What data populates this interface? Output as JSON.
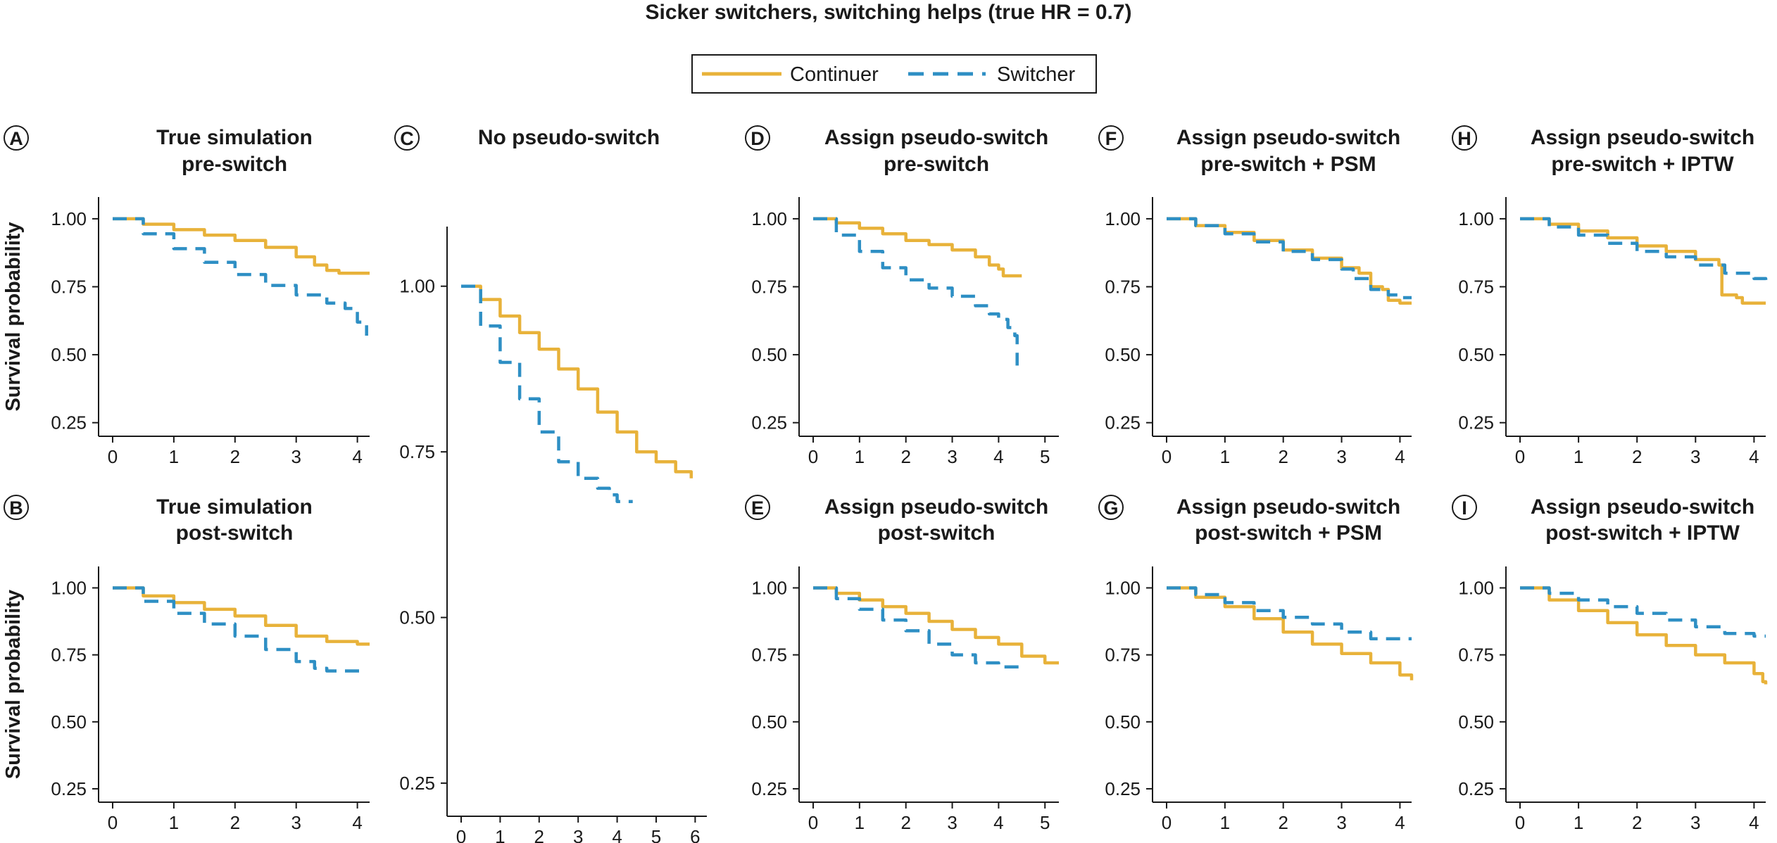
{
  "figure": {
    "title": "Sicker switchers, switching helps (true HR = 0.7)",
    "legend": {
      "placement": "top-center",
      "items": [
        {
          "label": "Continuer",
          "color": "#e8b23a",
          "dash": "solid"
        },
        {
          "label": "Switcher",
          "color": "#2e8fc4",
          "dash": "dashed"
        }
      ]
    },
    "ylabel": "Survival probability"
  },
  "chart_data": [
    {
      "id": "A",
      "type": "line",
      "title_lines": [
        "True simulation",
        "pre-switch"
      ],
      "ylabel": "Survival probability",
      "xlim": [
        0,
        4.2
      ],
      "ylim": [
        0.2,
        1.08
      ],
      "xticks": [
        0,
        1,
        2,
        3,
        4
      ],
      "yticks": [
        "1.00",
        "0.75",
        "0.50",
        "0.25"
      ],
      "series": [
        {
          "name": "Continuer",
          "x": [
            0,
            0.5,
            1,
            1.5,
            2,
            2.5,
            3,
            3.3,
            3.5,
            3.7,
            4.2
          ],
          "y": [
            1.0,
            0.98,
            0.96,
            0.94,
            0.92,
            0.895,
            0.86,
            0.83,
            0.81,
            0.8,
            0.8
          ]
        },
        {
          "name": "Switcher",
          "x": [
            0,
            0.5,
            1,
            1.5,
            2,
            2.5,
            3,
            3.5,
            3.8,
            4.0,
            4.15
          ],
          "y": [
            1.0,
            0.945,
            0.89,
            0.84,
            0.795,
            0.755,
            0.72,
            0.69,
            0.67,
            0.62,
            0.57
          ]
        }
      ]
    },
    {
      "id": "B",
      "type": "line",
      "title_lines": [
        "True simulation",
        "post-switch"
      ],
      "ylabel": "Survival probability",
      "xlim": [
        0,
        4.2
      ],
      "ylim": [
        0.2,
        1.08
      ],
      "xticks": [
        0,
        1,
        2,
        3,
        4
      ],
      "yticks": [
        "1.00",
        "0.75",
        "0.50",
        "0.25"
      ],
      "series": [
        {
          "name": "Continuer",
          "x": [
            0,
            0.5,
            1,
            1.5,
            2,
            2.5,
            3,
            3.5,
            4,
            4.2
          ],
          "y": [
            1.0,
            0.97,
            0.945,
            0.92,
            0.895,
            0.86,
            0.82,
            0.8,
            0.79,
            0.79
          ]
        },
        {
          "name": "Switcher",
          "x": [
            0,
            0.5,
            1,
            1.5,
            2,
            2.5,
            3,
            3.3,
            3.5,
            4.1
          ],
          "y": [
            1.0,
            0.95,
            0.905,
            0.865,
            0.82,
            0.77,
            0.725,
            0.7,
            0.69,
            0.675
          ]
        }
      ]
    },
    {
      "id": "C",
      "type": "line",
      "title_lines": [
        "No pseudo-switch"
      ],
      "xlim": [
        0,
        6.3
      ],
      "ylim": [
        0.2,
        1.09
      ],
      "xticks": [
        0,
        1,
        2,
        3,
        4,
        5,
        6
      ],
      "yticks": [
        "1.00",
        "0.75",
        "0.50",
        "0.25"
      ],
      "series": [
        {
          "name": "Continuer",
          "x": [
            0,
            0.5,
            1,
            1.5,
            2,
            2.5,
            3,
            3.5,
            4,
            4.5,
            5,
            5.5,
            5.9
          ],
          "y": [
            1.0,
            0.98,
            0.955,
            0.93,
            0.905,
            0.875,
            0.845,
            0.81,
            0.78,
            0.75,
            0.735,
            0.72,
            0.71
          ]
        },
        {
          "name": "Switcher",
          "x": [
            0,
            0.5,
            1,
            1.5,
            2,
            2.5,
            3,
            3.5,
            3.8,
            4.0,
            4.4
          ],
          "y": [
            1.0,
            0.94,
            0.885,
            0.83,
            0.78,
            0.735,
            0.71,
            0.695,
            0.685,
            0.675,
            0.675
          ]
        }
      ]
    },
    {
      "id": "D",
      "type": "line",
      "title_lines": [
        "Assign pseudo-switch",
        "pre-switch"
      ],
      "xlim": [
        0,
        5.3
      ],
      "ylim": [
        0.2,
        1.08
      ],
      "xticks": [
        0,
        1,
        2,
        3,
        4,
        5
      ],
      "yticks": [
        "1.00",
        "0.75",
        "0.50",
        "0.25"
      ],
      "series": [
        {
          "name": "Continuer",
          "x": [
            0,
            0.5,
            1,
            1.5,
            2,
            2.5,
            3,
            3.5,
            3.8,
            4.0,
            4.1,
            4.5
          ],
          "y": [
            1.0,
            0.985,
            0.965,
            0.945,
            0.92,
            0.905,
            0.885,
            0.86,
            0.83,
            0.815,
            0.79,
            0.79
          ]
        },
        {
          "name": "Switcher",
          "x": [
            0,
            0.5,
            1,
            1.5,
            2,
            2.5,
            3,
            3.5,
            3.8,
            4.0,
            4.2,
            4.35,
            4.4
          ],
          "y": [
            1.0,
            0.94,
            0.88,
            0.82,
            0.775,
            0.745,
            0.715,
            0.68,
            0.65,
            0.63,
            0.6,
            0.57,
            0.46
          ]
        }
      ]
    },
    {
      "id": "E",
      "type": "line",
      "title_lines": [
        "Assign pseudo-switch",
        "post-switch"
      ],
      "xlim": [
        0,
        5.3
      ],
      "ylim": [
        0.2,
        1.08
      ],
      "xticks": [
        0,
        1,
        2,
        3,
        4,
        5
      ],
      "yticks": [
        "1.00",
        "0.75",
        "0.50",
        "0.25"
      ],
      "series": [
        {
          "name": "Continuer",
          "x": [
            0,
            0.5,
            1,
            1.5,
            2,
            2.5,
            3,
            3.5,
            4,
            4.5,
            5,
            5.3
          ],
          "y": [
            1.0,
            0.98,
            0.955,
            0.93,
            0.905,
            0.875,
            0.845,
            0.815,
            0.79,
            0.745,
            0.72,
            0.72
          ]
        },
        {
          "name": "Switcher",
          "x": [
            0,
            0.5,
            1,
            1.5,
            2,
            2.5,
            3,
            3.5,
            4,
            4.5
          ],
          "y": [
            1.0,
            0.96,
            0.92,
            0.88,
            0.84,
            0.79,
            0.75,
            0.72,
            0.705,
            0.705
          ]
        }
      ]
    },
    {
      "id": "F",
      "type": "line",
      "title_lines": [
        "Assign pseudo-switch",
        "pre-switch + PSM"
      ],
      "xlim": [
        0,
        4.2
      ],
      "ylim": [
        0.2,
        1.08
      ],
      "xticks": [
        0,
        1,
        2,
        3,
        4
      ],
      "yticks": [
        "1.00",
        "0.75",
        "0.50",
        "0.25"
      ],
      "series": [
        {
          "name": "Continuer",
          "x": [
            0,
            0.5,
            1,
            1.5,
            2,
            2.5,
            3,
            3.3,
            3.5,
            3.7,
            3.8,
            4.0,
            4.2
          ],
          "y": [
            1.0,
            0.975,
            0.95,
            0.92,
            0.885,
            0.855,
            0.82,
            0.8,
            0.75,
            0.74,
            0.7,
            0.69,
            0.69
          ]
        },
        {
          "name": "Switcher",
          "x": [
            0,
            0.5,
            1,
            1.5,
            2,
            2.5,
            3,
            3.2,
            3.5,
            3.8,
            4.0,
            4.2
          ],
          "y": [
            1.0,
            0.975,
            0.945,
            0.915,
            0.88,
            0.85,
            0.815,
            0.78,
            0.74,
            0.72,
            0.71,
            0.71
          ]
        }
      ]
    },
    {
      "id": "G",
      "type": "line",
      "title_lines": [
        "Assign pseudo-switch",
        "post-switch + PSM"
      ],
      "xlim": [
        0,
        4.2
      ],
      "ylim": [
        0.2,
        1.08
      ],
      "xticks": [
        0,
        1,
        2,
        3,
        4
      ],
      "yticks": [
        "1.00",
        "0.75",
        "0.50",
        "0.25"
      ],
      "series": [
        {
          "name": "Continuer",
          "x": [
            0,
            0.5,
            1,
            1.5,
            2,
            2.5,
            3,
            3.5,
            4,
            4.2
          ],
          "y": [
            1.0,
            0.965,
            0.93,
            0.885,
            0.835,
            0.79,
            0.755,
            0.72,
            0.675,
            0.655
          ]
        },
        {
          "name": "Switcher",
          "x": [
            0,
            0.5,
            1,
            1.5,
            2,
            2.5,
            3,
            3.5,
            4,
            4.2
          ],
          "y": [
            1.0,
            0.975,
            0.945,
            0.915,
            0.89,
            0.865,
            0.835,
            0.81,
            0.81,
            0.81
          ]
        }
      ]
    },
    {
      "id": "H",
      "type": "line",
      "title_lines": [
        "Assign pseudo-switch",
        "pre-switch + IPTW"
      ],
      "xlim": [
        0,
        4.2
      ],
      "ylim": [
        0.2,
        1.08
      ],
      "xticks": [
        0,
        1,
        2,
        3,
        4
      ],
      "yticks": [
        "1.00",
        "0.75",
        "0.50",
        "0.25"
      ],
      "series": [
        {
          "name": "Continuer",
          "x": [
            0,
            0.5,
            1,
            1.5,
            2,
            2.5,
            3,
            3.4,
            3.45,
            3.7,
            3.8,
            4.2
          ],
          "y": [
            1.0,
            0.98,
            0.955,
            0.93,
            0.9,
            0.88,
            0.85,
            0.83,
            0.72,
            0.71,
            0.69,
            0.69
          ]
        },
        {
          "name": "Switcher",
          "x": [
            0,
            0.5,
            1,
            1.5,
            2,
            2.5,
            3,
            3.5,
            4,
            4.2
          ],
          "y": [
            1.0,
            0.97,
            0.94,
            0.91,
            0.88,
            0.86,
            0.83,
            0.8,
            0.78,
            0.76
          ]
        }
      ]
    },
    {
      "id": "I",
      "type": "line",
      "title_lines": [
        "Assign pseudo-switch",
        "post-switch + IPTW"
      ],
      "xlim": [
        0,
        4.2
      ],
      "ylim": [
        0.2,
        1.08
      ],
      "xticks": [
        0,
        1,
        2,
        3,
        4
      ],
      "yticks": [
        "1.00",
        "0.75",
        "0.50",
        "0.25"
      ],
      "series": [
        {
          "name": "Continuer",
          "x": [
            0,
            0.5,
            1,
            1.5,
            2,
            2.5,
            3,
            3.5,
            4,
            4.15,
            4.2
          ],
          "y": [
            1.0,
            0.955,
            0.915,
            0.87,
            0.825,
            0.785,
            0.75,
            0.72,
            0.68,
            0.65,
            0.64
          ]
        },
        {
          "name": "Switcher",
          "x": [
            0,
            0.5,
            1,
            1.5,
            2,
            2.5,
            3,
            3.5,
            4,
            4.2
          ],
          "y": [
            1.0,
            0.98,
            0.955,
            0.93,
            0.905,
            0.88,
            0.855,
            0.83,
            0.82,
            0.82
          ]
        }
      ]
    }
  ]
}
